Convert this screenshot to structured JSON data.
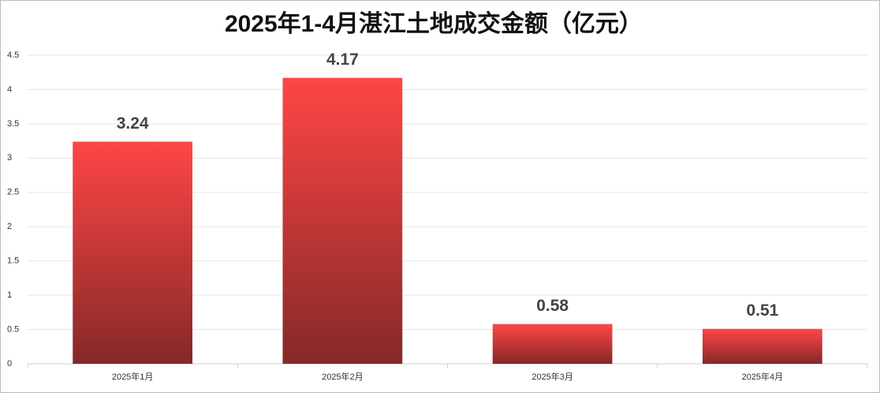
{
  "chart_data": {
    "type": "bar",
    "title": "2025年1-4月湛江土地成交金额（亿元）",
    "categories": [
      "2025年1月",
      "2025年2月",
      "2025年3月",
      "2025年4月"
    ],
    "values": [
      3.24,
      4.17,
      0.58,
      0.51
    ],
    "gradient": [
      "#ff4646",
      "#852828"
    ],
    "ylim": [
      0,
      4.5
    ],
    "yticks": [
      0,
      0.5,
      1,
      1.5,
      2,
      2.5,
      3,
      3.5,
      4,
      4.5
    ],
    "grid": true
  }
}
